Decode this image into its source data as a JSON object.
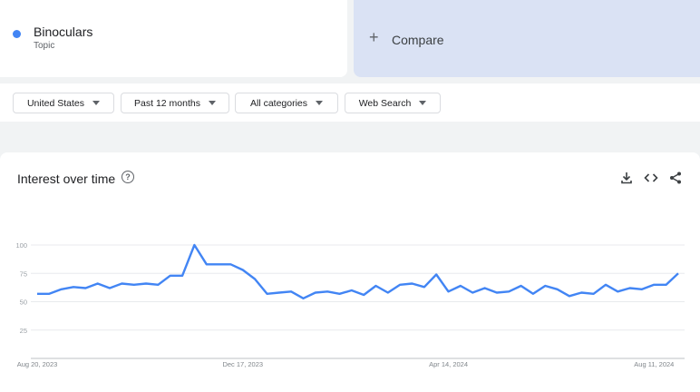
{
  "term": {
    "name": "Binoculars",
    "type": "Topic",
    "color": "#4285f4"
  },
  "compare": {
    "plus": "+",
    "label": "Compare"
  },
  "filters": [
    {
      "label": "United States"
    },
    {
      "label": "Past 12 months"
    },
    {
      "label": "All categories"
    },
    {
      "label": "Web Search"
    }
  ],
  "chart": {
    "title": "Interest over time",
    "help_icon": "help-circle-icon",
    "tools": [
      "download-icon",
      "embed-code-icon",
      "share-icon"
    ]
  },
  "chart_data": {
    "type": "line",
    "title": "Interest over time",
    "xlabel": "",
    "ylabel": "",
    "ylim": [
      0,
      100
    ],
    "yticks": [
      25,
      50,
      75,
      100
    ],
    "grid": true,
    "x_tick_labels": [
      "Aug 20, 2023",
      "Dec 17, 2023",
      "Apr 14, 2024",
      "Aug 11, 2024"
    ],
    "x_tick_indices": [
      0,
      17,
      34,
      51
    ],
    "series": [
      {
        "color": "#4285f4",
        "values": [
          57,
          57,
          61,
          63,
          62,
          66,
          62,
          66,
          65,
          66,
          65,
          73,
          73,
          100,
          83,
          83,
          83,
          78,
          70,
          57,
          58,
          59,
          53,
          58,
          59,
          57,
          60,
          56,
          64,
          58,
          65,
          66,
          63,
          74,
          59,
          64,
          58,
          62,
          58,
          59,
          64,
          57,
          64,
          61,
          55,
          58,
          57,
          65,
          59,
          62,
          61,
          65,
          65,
          75
        ]
      }
    ]
  }
}
